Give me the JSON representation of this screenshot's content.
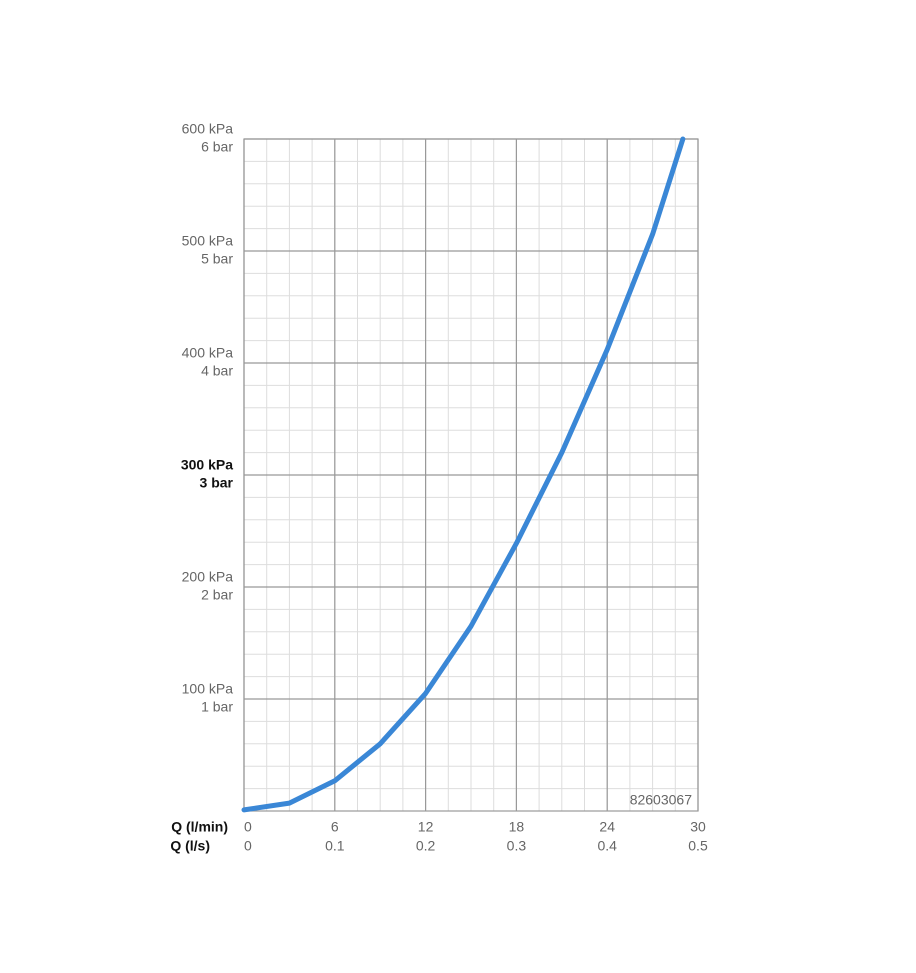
{
  "chart_data": {
    "type": "line",
    "x": [
      0,
      3,
      6,
      9,
      12,
      15,
      18,
      21,
      24,
      27,
      29
    ],
    "values": [
      1,
      7,
      27,
      60,
      105,
      165,
      239,
      320,
      412,
      515,
      600
    ],
    "color": "#3a87d6",
    "xlabel": "Q (l/min)",
    "x2label": "Q (l/s)",
    "xlim": [
      0,
      30
    ],
    "xticks": [
      0,
      6,
      12,
      18,
      24,
      30
    ],
    "x2lim": [
      0,
      0.5
    ],
    "x2ticks": [
      0,
      0.1,
      0.2,
      0.3,
      0.4,
      0.5
    ],
    "ylim": [
      0,
      600
    ],
    "yticks": [
      {
        "value": 100,
        "label": "100 kPa"
      },
      {
        "value": 200,
        "label": "200 kPa"
      },
      {
        "value": 300,
        "label": "300 kPa"
      },
      {
        "value": 400,
        "label": "400 kPa"
      },
      {
        "value": 500,
        "label": "500 kPa"
      },
      {
        "value": 600,
        "label": "600 kPa"
      }
    ],
    "y2lim": [
      0,
      6
    ],
    "y2ticks": [
      {
        "value": 1,
        "label": "1 bar"
      },
      {
        "value": 2,
        "label": "2 bar"
      },
      {
        "value": 3,
        "label": "3 bar"
      },
      {
        "value": 4,
        "label": "4 bar"
      },
      {
        "value": 5,
        "label": "5 bar"
      },
      {
        "value": 6,
        "label": "6 bar"
      }
    ],
    "bold_ytick_value": 300,
    "grid": true,
    "x_minor_step": 1.5,
    "y_minor_step": 20,
    "annotation": "82603067"
  }
}
